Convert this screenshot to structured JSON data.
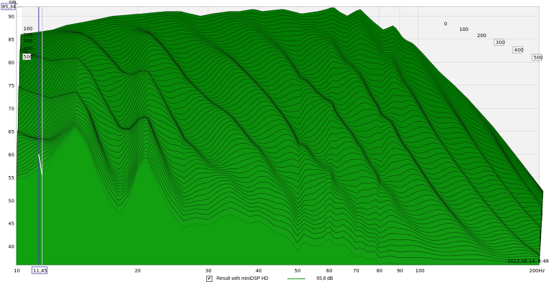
{
  "chart_data": {
    "type": "area",
    "subtype": "waterfall-3d",
    "xlabel": "",
    "ylabel": "SPL",
    "x_unit": "Hz",
    "x_scale": "log",
    "xlim": [
      10,
      200
    ],
    "ylim": [
      36,
      92
    ],
    "x_ticks": [
      {
        "value": 10,
        "label": "10"
      },
      {
        "value": 20,
        "label": "20"
      },
      {
        "value": 30,
        "label": "30"
      },
      {
        "value": 40,
        "label": "40"
      },
      {
        "value": 50,
        "label": "50"
      },
      {
        "value": 60,
        "label": "60"
      },
      {
        "value": 70,
        "label": "70"
      },
      {
        "value": 80,
        "label": "80"
      },
      {
        "value": 90,
        "label": "90"
      },
      {
        "value": 100,
        "label": "100"
      },
      {
        "value": 200,
        "label": "200Hz"
      }
    ],
    "y_ticks": [
      40,
      45,
      50,
      55,
      60,
      65,
      70,
      75,
      80,
      85,
      90
    ],
    "z_ticks": [
      "0",
      "100",
      "200",
      "300",
      "400",
      "500"
    ],
    "cursor_x_label": "11,45",
    "cursor_y_label": "85,34",
    "watermark": "2023.08.14. 8:48",
    "grid": true,
    "num_slices": 60,
    "front_slice": {
      "x": [
        10,
        10.5,
        11,
        11.45,
        12,
        13,
        14,
        15,
        16,
        17,
        18,
        19,
        20,
        21,
        22,
        24,
        26,
        28,
        30,
        32,
        34,
        36,
        38,
        40,
        42,
        44,
        46,
        48,
        50,
        52,
        55,
        58,
        60,
        62,
        65,
        68,
        70,
        72,
        75,
        78,
        80,
        85,
        90,
        95,
        100,
        110,
        120,
        130,
        140,
        150,
        160,
        170,
        180,
        190,
        200
      ],
      "y": [
        54.5,
        55,
        56,
        57,
        58,
        62,
        65.5,
        62,
        55,
        50,
        47,
        50,
        56,
        59,
        55,
        48,
        44,
        45,
        44.5,
        46,
        47,
        46,
        45,
        45.5,
        44.5,
        43,
        42.5,
        41.5,
        39,
        41,
        40,
        40.5,
        42,
        40,
        40.5,
        39,
        37.5,
        38,
        37,
        37.5,
        36,
        36.5,
        36,
        36,
        36,
        36,
        36,
        36,
        36,
        36,
        36,
        36,
        36,
        36,
        36
      ]
    },
    "back_slice": {
      "x": [
        10,
        11,
        12,
        13,
        15,
        17,
        20,
        23,
        25,
        28,
        30,
        33,
        35,
        38,
        40,
        45,
        50,
        55,
        58,
        60,
        62,
        65,
        68,
        70,
        75,
        80,
        85,
        90,
        95,
        100,
        110,
        120,
        130,
        150,
        170,
        200
      ],
      "y": [
        86,
        86.5,
        87,
        88,
        89,
        90,
        90.5,
        91,
        91,
        90,
        90.5,
        91,
        91,
        91.5,
        91,
        91.5,
        90.5,
        91,
        91.5,
        92,
        91,
        90,
        91,
        91.5,
        89,
        87,
        88,
        85,
        84,
        82,
        78,
        75,
        72,
        66,
        60,
        52
      ]
    },
    "series": [
      {
        "name": "Result with miniDSP HD",
        "level": "55,8 dB",
        "color": "#0a9a0a"
      }
    ]
  },
  "legend": {
    "checkbox": "✔",
    "series_name": "Result with miniDSP HD",
    "level": "55,8 dB"
  }
}
